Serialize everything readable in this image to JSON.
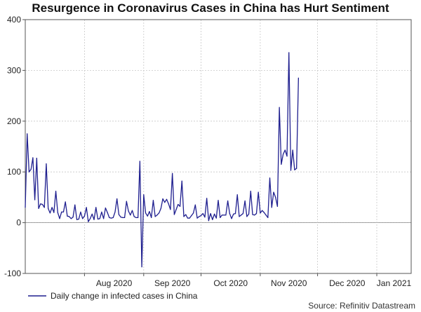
{
  "chart_data": {
    "type": "line",
    "title": "Resurgence in Coronavirus Cases in China has Hurt Sentiment",
    "xlabel": "",
    "ylabel": "",
    "ylim": [
      -100,
      400
    ],
    "yticks": [
      -100,
      0,
      100,
      200,
      300,
      400
    ],
    "x_start": "2020-07-01",
    "x_end": "2021-01-19",
    "month_ticks": [
      {
        "label": "Aug 2020",
        "date": "2020-08-01"
      },
      {
        "label": "Sep 2020",
        "date": "2020-09-01"
      },
      {
        "label": "Oct 2020",
        "date": "2020-10-01"
      },
      {
        "label": "Nov 2020",
        "date": "2020-11-01"
      },
      {
        "label": "Dec 2020",
        "date": "2020-12-01"
      },
      {
        "label": "Jan 2021",
        "date": "2021-01-01"
      }
    ],
    "grid": true,
    "legend_position": "bottom-left",
    "line_color": "#1f1f8f",
    "series": [
      {
        "name": "Daily change in infected cases in China",
        "values": [
          30,
          175,
          100,
          105,
          128,
          45,
          127,
          28,
          37,
          36,
          30,
          116,
          28,
          19,
          30,
          20,
          62,
          20,
          8,
          21,
          21,
          41,
          13,
          12,
          8,
          11,
          35,
          6,
          7,
          21,
          8,
          13,
          30,
          2,
          8,
          17,
          6,
          30,
          7,
          8,
          21,
          8,
          29,
          20,
          10,
          9,
          10,
          21,
          47,
          16,
          11,
          10,
          10,
          42,
          23,
          15,
          24,
          12,
          10,
          10,
          121,
          -87,
          55,
          19,
          13,
          22,
          10,
          44,
          12,
          15,
          19,
          28,
          47,
          40,
          46,
          37,
          26,
          97,
          16,
          26,
          36,
          32,
          82,
          12,
          16,
          9,
          9,
          14,
          19,
          35,
          9,
          12,
          14,
          18,
          11,
          48,
          4,
          18,
          6,
          17,
          9,
          44,
          10,
          15,
          15,
          15,
          43,
          18,
          8,
          17,
          18,
          55,
          12,
          15,
          18,
          43,
          12,
          17,
          62,
          16,
          15,
          18,
          60,
          19,
          24,
          20,
          15,
          10,
          88,
          30,
          60,
          50,
          32,
          227,
          115,
          135,
          143,
          131,
          335,
          103,
          143,
          104,
          107,
          285
        ]
      }
    ],
    "source": "Source: Refinitiv Datastream"
  }
}
